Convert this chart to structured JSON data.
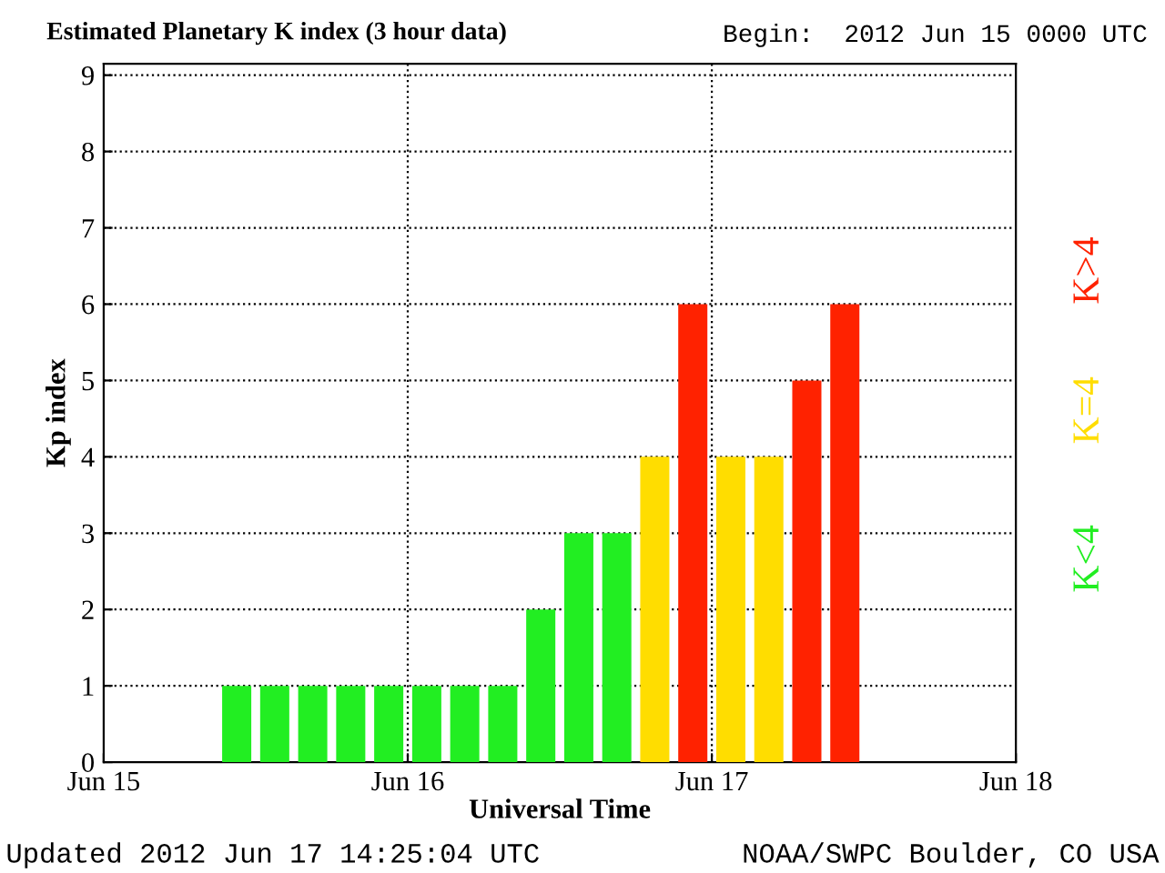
{
  "chart_data": {
    "type": "bar",
    "title": "Estimated Planetary K index (3 hour data)",
    "subtitle": "Begin:  2012 Jun 15 0000 UTC",
    "xlabel": "Universal Time",
    "ylabel": "Kp index",
    "x": [
      "2012-06-15T10:30",
      "2012-06-15T13:30",
      "2012-06-15T16:30",
      "2012-06-15T19:30",
      "2012-06-15T22:30",
      "2012-06-16T01:30",
      "2012-06-16T04:30",
      "2012-06-16T07:30",
      "2012-06-16T10:30",
      "2012-06-16T13:30",
      "2012-06-16T16:30",
      "2012-06-16T19:30",
      "2012-06-16T22:30",
      "2012-06-17T01:30",
      "2012-06-17T04:30",
      "2012-06-17T07:30",
      "2012-06-17T10:30"
    ],
    "values": [
      1,
      1,
      1,
      1,
      1,
      1,
      1,
      1,
      2,
      3,
      3,
      4,
      6,
      4,
      4,
      5,
      6
    ],
    "colors": [
      "#22ee22",
      "#22ee22",
      "#22ee22",
      "#22ee22",
      "#22ee22",
      "#22ee22",
      "#22ee22",
      "#22ee22",
      "#22ee22",
      "#22ee22",
      "#22ee22",
      "#ffdd00",
      "#ff2200",
      "#ffdd00",
      "#ffdd00",
      "#ff2200",
      "#ff2200"
    ],
    "xlim": [
      "2012-06-15",
      "2012-06-18"
    ],
    "xticks": [
      {
        "value": "2012-06-15",
        "label": "Jun 15"
      },
      {
        "value": "2012-06-16",
        "label": "Jun 16"
      },
      {
        "value": "2012-06-17",
        "label": "Jun 17"
      },
      {
        "value": "2012-06-18",
        "label": "Jun 18"
      }
    ],
    "ylim": [
      0,
      9.15
    ],
    "yticks": [
      0,
      1,
      2,
      3,
      4,
      5,
      6,
      7,
      8,
      9
    ],
    "grid": true,
    "line_style": "dotted",
    "annotations": [
      "K<4",
      "K=4",
      "K>4",
      "Updated 2012 Jun 17 14:25:04 UTC",
      "NOAA/SWPC Boulder, CO USA"
    ]
  }
}
